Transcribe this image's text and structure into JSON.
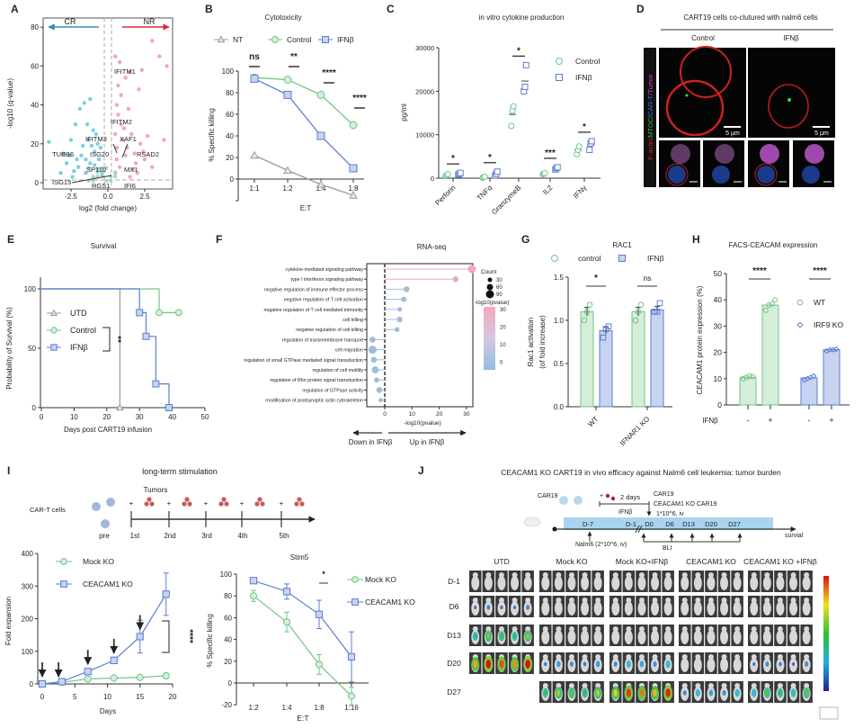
{
  "colors": {
    "control": "#72c486",
    "control_fill": "#d4eed9",
    "ifn": "#5a7fcf",
    "ifn_fill": "#c7d3f0",
    "nt": "#9a9a9a",
    "cr": "#5cc3d8",
    "nr": "#f08db2",
    "cr_arrow": "#3a8fb5",
    "nr_arrow": "#d62b3b"
  },
  "figure": {
    "panel_labels": [
      "A",
      "B",
      "C",
      "D",
      "E",
      "F",
      "G",
      "H",
      "I",
      "J"
    ],
    "D": {
      "title": "CART19 cells co-clutured with nalm6 cells",
      "columns": [
        "Control",
        "IFNβ"
      ],
      "channel_label_parts": [
        {
          "text": "F-actin/",
          "color": "#e02020"
        },
        {
          "text": "MTOC/",
          "color": "#20c040"
        },
        {
          "text": "CAR-T/",
          "color": "#3a70e0"
        },
        {
          "text": "Tumor",
          "color": "#d040c0"
        }
      ],
      "scale_bar": "5 μm"
    },
    "I_schematic": {
      "title": "long-term stimulation",
      "cells_label": "CAR-T cells",
      "tumors_label": "Tumors",
      "plus": "+",
      "stages": [
        "pre",
        "1st",
        "2nd",
        "3rd",
        "4th",
        "5th"
      ]
    },
    "J": {
      "title": "CEACAM1 KO CART19 in vivo efficacy against Nalm6 cell leukemia: tumor burden",
      "car19_label": "CAR19",
      "plus": "+",
      "two_days": "2 days",
      "ifn_label": "IFNβ",
      "infusion_lines": [
        "CAR19",
        "CEACAM1 KO CAR19",
        "1*10^6, iv"
      ],
      "days": [
        "D-7",
        "D-1",
        "D0",
        "D6",
        "D13",
        "D20",
        "D27"
      ],
      "survival_label": "survial",
      "nalm6_label": "Nalm6 (2*10^6, iv)",
      "bli_label": "BLI",
      "groups": [
        "UTD",
        "Mock KO",
        "Mock KO+IFNβ",
        "CEACAM1 KO",
        "CEACAM1 KO +IFNβ"
      ],
      "rows": [
        "D-1",
        "D6",
        "D13",
        "D20",
        "D27"
      ],
      "signal_by_group": [
        [
          0,
          0.05,
          0.55,
          0.95,
          null
        ],
        [
          0,
          0,
          0,
          0.15,
          0.6
        ],
        [
          0,
          0,
          0,
          0.25,
          0.9
        ],
        [
          0,
          0,
          0,
          0,
          0.25
        ],
        [
          0,
          0,
          0,
          0.08,
          0.5
        ]
      ]
    }
  },
  "chart_data": [
    {
      "panel": "A",
      "type": "scatter",
      "xlabel": "log2 (fold change)",
      "ylabel": "-log10 (q-value)",
      "xticks": [
        "-2.5",
        "0.0",
        "2.5"
      ],
      "yticks": [
        "0",
        "20",
        "40",
        "60",
        "80"
      ],
      "xlim": [
        -4.4,
        4.4
      ],
      "ylim": [
        0,
        85
      ],
      "direction_labels": [
        "CR",
        "NR"
      ],
      "gene_labels": [
        "IFITM1",
        "IFITM2",
        "IFITM3",
        "XAF1",
        "TUBB6",
        "ISG20",
        "RSAD2",
        "SP110",
        "MX1",
        "ISG15",
        "RGS1",
        "IFI6"
      ],
      "series": [
        {
          "name": "CR",
          "points": [
            [
              -4,
              21
            ],
            [
              -3.2,
              5
            ],
            [
              -3,
              15
            ],
            [
              -2.8,
              10
            ],
            [
              -2.5,
              22
            ],
            [
              -2.4,
              3
            ],
            [
              -2.2,
              30
            ],
            [
              -2.1,
              12
            ],
            [
              -2,
              8
            ],
            [
              -1.9,
              38
            ],
            [
              -1.8,
              14
            ],
            [
              -1.7,
              19
            ],
            [
              -1.6,
              41
            ],
            [
              -1.5,
              5
            ],
            [
              -1.4,
              30
            ],
            [
              -1.3,
              22
            ],
            [
              -1.2,
              43
            ],
            [
              -1.2,
              10
            ],
            [
              -1,
              27
            ],
            [
              -1,
              3
            ],
            [
              -0.9,
              16
            ],
            [
              -0.8,
              25
            ],
            [
              -0.7,
              7
            ],
            [
              -0.6,
              12
            ],
            [
              -0.5,
              18
            ],
            [
              -0.4,
              4
            ],
            [
              -2.6,
              14
            ],
            [
              -1.1,
              19
            ],
            [
              -0.7,
              20
            ],
            [
              -1.5,
              12
            ],
            [
              -2.3,
              6
            ],
            [
              -0.9,
              9
            ]
          ]
        },
        {
          "name": "NR",
          "points": [
            [
              0.5,
              65
            ],
            [
              0.8,
              62
            ],
            [
              1.2,
              54
            ],
            [
              1.5,
              57
            ],
            [
              2.1,
              48
            ],
            [
              2.3,
              58
            ],
            [
              3,
              73
            ],
            [
              3.5,
              65
            ],
            [
              4,
              60
            ],
            [
              0.6,
              40
            ],
            [
              0.7,
              35
            ],
            [
              0.9,
              30
            ],
            [
              0.5,
              25
            ],
            [
              1,
              22
            ],
            [
              1.3,
              18
            ],
            [
              1.8,
              15
            ],
            [
              2.5,
              12
            ],
            [
              3,
              8
            ],
            [
              2,
              5
            ],
            [
              1.5,
              3
            ],
            [
              0.6,
              12
            ],
            [
              0.8,
              8
            ],
            [
              1.1,
              28
            ],
            [
              1.6,
              25
            ],
            [
              2.2,
              20
            ],
            [
              0.7,
              50
            ],
            [
              1.4,
              38
            ],
            [
              2.7,
              24
            ],
            [
              0.5,
              5
            ],
            [
              1.9,
              10
            ],
            [
              3.8,
              22
            ],
            [
              0.6,
              18
            ],
            [
              1.2,
              14
            ],
            [
              0.9,
              45
            ],
            [
              1.7,
              7
            ],
            [
              2.4,
              16
            ]
          ]
        }
      ]
    },
    {
      "panel": "B",
      "type": "line",
      "title": "Cytotoxicity",
      "xlabel": "E:T",
      "ylabel": "% Specific killing",
      "categories": [
        "1:1",
        "1:2",
        "1:4",
        "1:8"
      ],
      "yticks": [
        "0",
        "20",
        "40",
        "60",
        "80",
        "100"
      ],
      "ylim": [
        -20,
        100
      ],
      "series": [
        {
          "name": "NT",
          "marker": "triangle",
          "values": [
            22,
            8,
            -5,
            -15
          ]
        },
        {
          "name": "Control",
          "marker": "circle",
          "values": [
            94,
            92,
            78,
            50
          ]
        },
        {
          "name": "IFNβ",
          "marker": "square",
          "values": [
            93,
            78,
            40,
            10
          ]
        }
      ],
      "significance": [
        "ns",
        "**",
        "****",
        "****"
      ]
    },
    {
      "panel": "C",
      "type": "scatter",
      "title": "in vitro cytokine production",
      "ylabel": "pg/ml",
      "yticks": [
        "0",
        "10000",
        "20000",
        "30000"
      ],
      "ylim": [
        0,
        30000
      ],
      "categories": [
        "Perforin",
        "TNFα",
        "GranzymeB",
        "IL2",
        "IFNγ"
      ],
      "series": [
        {
          "name": "Control",
          "marker": "circle",
          "points": [
            [
              500,
              700,
              900
            ],
            [
              100,
              200,
              300
            ],
            [
              12000,
              15500,
              16500
            ],
            [
              900,
              1000,
              1200
            ],
            [
              5500,
              6500,
              7300
            ]
          ]
        },
        {
          "name": "IFNβ",
          "marker": "square",
          "points": [
            [
              800,
              1000,
              1200
            ],
            [
              600,
              1000,
              1500
            ],
            [
              20000,
              21000,
              26000
            ],
            [
              2000,
              2300,
              2500
            ],
            [
              6500,
              8000,
              8500
            ]
          ]
        }
      ],
      "significance": [
        "*",
        "*",
        "*",
        "***",
        "*"
      ]
    },
    {
      "panel": "E",
      "type": "line",
      "title": "Survival",
      "xlabel": "Days post CART19 infusion",
      "ylabel": "Probability of Survival (%)",
      "xticks": [
        "0",
        "10",
        "20",
        "30",
        "40",
        "50"
      ],
      "yticks": [
        "0",
        "50",
        "100"
      ],
      "xlim": [
        0,
        50
      ],
      "ylim": [
        0,
        100
      ],
      "series": [
        {
          "name": "UTD",
          "marker": "triangle",
          "times": [
            0,
            24
          ],
          "survival": [
            100,
            0
          ]
        },
        {
          "name": "Control",
          "marker": "circle",
          "times": [
            0,
            36,
            42
          ],
          "survival": [
            100,
            80,
            80
          ]
        },
        {
          "name": "IFNβ",
          "marker": "square",
          "times": [
            0,
            30,
            32,
            35,
            39
          ],
          "survival": [
            100,
            80,
            60,
            20,
            0
          ]
        }
      ],
      "significance": "**"
    },
    {
      "panel": "F",
      "type": "scatter",
      "title": "RNA-seq",
      "xlabel": "-log10(pvalue)",
      "xticks": [
        "0",
        "10",
        "20",
        "30"
      ],
      "xlim": [
        -6.5,
        32.5
      ],
      "terms": [
        {
          "term": "cytokine-mediated signaling pathway",
          "value": 32,
          "count": 90
        },
        {
          "term": "type I interferon signaling pathway",
          "value": 26,
          "count": 50
        },
        {
          "term": "negative regulation of immune effector process",
          "value": 8,
          "count": 55
        },
        {
          "term": "negative regulation of T cell activation",
          "value": 7,
          "count": 45
        },
        {
          "term": "negative regulation of T cell mediated immunity",
          "value": 5.5,
          "count": 30
        },
        {
          "term": "cell killing",
          "value": 5.5,
          "count": 50
        },
        {
          "term": "negative regulation of cell killing",
          "value": 4.5,
          "count": 35
        },
        {
          "term": "regulation of transmembrane transport",
          "value": -4.5,
          "count": 55
        },
        {
          "term": "cell migration",
          "value": -4.5,
          "count": 90
        },
        {
          "term": "regulation of small GTPase mediated signal transduction",
          "value": -4,
          "count": 55
        },
        {
          "term": "regulation of cell motility",
          "value": -3.5,
          "count": 70
        },
        {
          "term": "regulation of Rho protein signal transduction",
          "value": -3,
          "count": 40
        },
        {
          "term": "regulation of GTPase activity",
          "value": -2,
          "count": 55
        },
        {
          "term": "modification of postsynaptic actin cytoskeleton",
          "value": -1.5,
          "count": 25
        }
      ],
      "legend_count_title": "Count",
      "legend_counts": [
        "30",
        "60",
        "90"
      ],
      "legend_color_title": "-log10(pvalue)",
      "legend_color_ticks": [
        "30",
        "20",
        "10",
        "0"
      ],
      "direction_labels": [
        "Down  in IFNβ",
        "Up  in IFNβ"
      ]
    },
    {
      "panel": "G",
      "type": "bar",
      "title": "RAC1",
      "ylabel": [
        "Rac1 activation",
        "(of fold increase)"
      ],
      "yticks": [
        "0.0",
        "0.5",
        "1.0",
        "1.5"
      ],
      "ylim": [
        0,
        1.5
      ],
      "categories": [
        "WT",
        "IFNAR1 KO"
      ],
      "legend": [
        "control",
        "IFNβ"
      ],
      "bars": [
        {
          "group": "WT",
          "treatment": "control",
          "value": 1.1,
          "sem": 0.05,
          "points": [
            1.0,
            1.1,
            1.18
          ]
        },
        {
          "group": "WT",
          "treatment": "IFNβ",
          "value": 0.88,
          "sem": 0.04,
          "points": [
            0.8,
            0.9,
            0.93
          ]
        },
        {
          "group": "IFNAR1 KO",
          "treatment": "control",
          "value": 1.1,
          "sem": 0.05,
          "points": [
            1.0,
            1.1,
            1.18
          ]
        },
        {
          "group": "IFNAR1 KO",
          "treatment": "IFNβ",
          "value": 1.12,
          "sem": 0.04,
          "points": [
            1.1,
            1.1,
            1.2
          ]
        }
      ],
      "significance": [
        "*",
        "ns"
      ]
    },
    {
      "panel": "H",
      "type": "bar",
      "title": "FACS-CEACAM expression",
      "ylabel": "CEACAM1 protein expression (%)",
      "yticks": [
        "0",
        "10",
        "20",
        "30",
        "40",
        "50"
      ],
      "ylim": [
        0,
        50
      ],
      "row_label": "IFNβ",
      "row_values": [
        "-",
        "+",
        "-",
        "+"
      ],
      "legend": [
        "WT",
        "IRF9 KO"
      ],
      "bars": [
        {
          "group": "WT",
          "ifn": "-",
          "value": 10.5,
          "points": [
            10,
            10.5,
            11,
            10.8
          ]
        },
        {
          "group": "WT",
          "ifn": "+",
          "value": 38,
          "points": [
            36,
            38,
            38.5,
            40
          ]
        },
        {
          "group": "IRF9 KO",
          "ifn": "-",
          "value": 10.3,
          "points": [
            9.5,
            10,
            10.5,
            11
          ]
        },
        {
          "group": "IRF9 KO",
          "ifn": "+",
          "value": 21,
          "points": [
            20.5,
            21,
            21,
            21.2
          ]
        }
      ],
      "significance": [
        "****",
        "****"
      ]
    },
    {
      "panel": "I",
      "type": "line",
      "xlabel": "Days",
      "ylabel": "Fold expansion",
      "xticks": [
        "0",
        "5",
        "10",
        "15",
        "20"
      ],
      "yticks": [
        "0",
        "100",
        "200",
        "300",
        "400"
      ],
      "xlim": [
        0,
        20
      ],
      "ylim": [
        0,
        400
      ],
      "x": [
        0,
        3,
        7,
        11,
        15,
        19
      ],
      "series": [
        {
          "name": "Mock KO",
          "marker": "circle",
          "values": [
            0,
            5,
            15,
            18,
            20,
            25
          ],
          "err": [
            0,
            2,
            3,
            3,
            4,
            4
          ]
        },
        {
          "name": "CEACAM1 KO",
          "marker": "square",
          "values": [
            0,
            7,
            38,
            72,
            145,
            275
          ],
          "err": [
            0,
            3,
            8,
            10,
            50,
            65
          ]
        }
      ],
      "stimulation_days": [
        0,
        2.5,
        7,
        11,
        15
      ],
      "significance": "****"
    },
    {
      "panel": "I",
      "type": "line",
      "title": "Stim5",
      "xlabel": "E:T",
      "ylabel": "% Specific killing",
      "categories": [
        "1:2",
        "1:4",
        "1:8",
        "1:16"
      ],
      "yticks": [
        "-20",
        "0",
        "20",
        "40",
        "60",
        "80",
        "100"
      ],
      "ylim": [
        -20,
        100
      ],
      "series": [
        {
          "name": "Mock KO",
          "marker": "circle",
          "values": [
            80,
            56,
            17,
            -12
          ],
          "err": [
            5,
            9,
            9,
            8
          ]
        },
        {
          "name": "CEACAM1 KO",
          "marker": "square",
          "values": [
            94,
            84,
            63,
            24
          ],
          "err": [
            2,
            7,
            13,
            23
          ]
        }
      ],
      "significance": [
        "",
        "",
        "*",
        ""
      ]
    }
  ]
}
